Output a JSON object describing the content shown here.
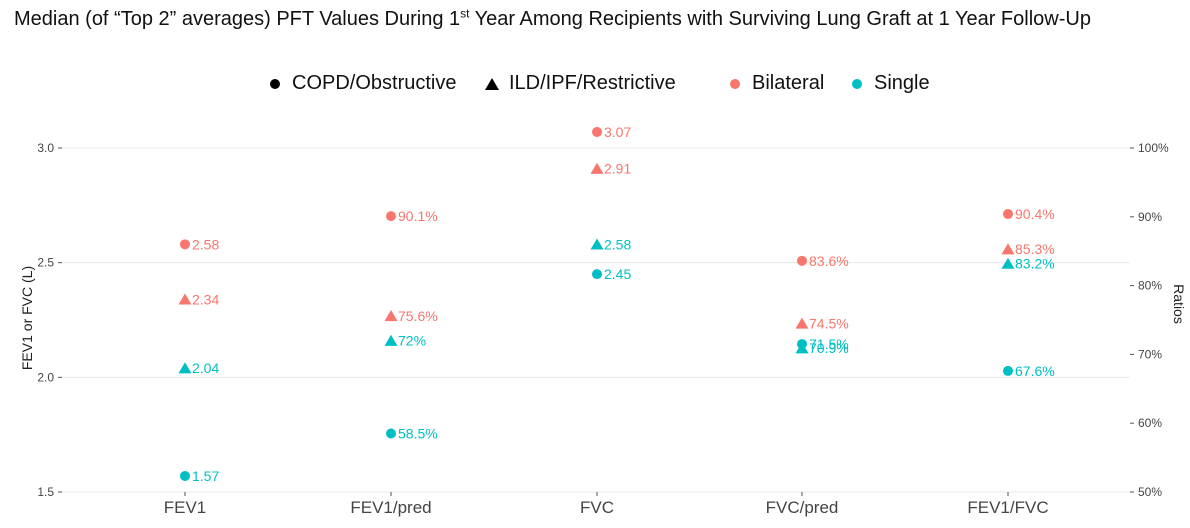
{
  "title_parts": {
    "pre": "Median (of “Top 2” averages) PFT Values During 1",
    "sup": "st",
    "post": " Year Among Recipients with Surviving Lung Graft at 1 Year Follow-Up"
  },
  "legend": {
    "shape_items": [
      {
        "label": "COPD/Obstructive",
        "shape": "circle"
      },
      {
        "label": "ILD/IPF/Restrictive",
        "shape": "triangle"
      }
    ],
    "color_items": [
      {
        "label": "Bilateral",
        "color": "#F8766D"
      },
      {
        "label": "Single",
        "color": "#00BFC4"
      }
    ]
  },
  "chart_data": {
    "type": "scatter",
    "title": "Median (of “Top 2” averages) PFT Values During 1st Year Among Recipients with Surviving Lung Graft at 1 Year Follow-Up",
    "categories": [
      "FEV1",
      "FEV1/pred",
      "FVC",
      "FVC/pred",
      "FEV1/FVC"
    ],
    "ylabel_left": "FEV1 or FVC (L)",
    "ylabel_right": "Ratios",
    "ylim_left": [
      1.5,
      3.0
    ],
    "ylim_right": [
      50,
      100
    ],
    "left_ticks": [
      "1.5",
      "2.0",
      "2.5",
      "3.0"
    ],
    "right_ticks": [
      "50%",
      "60%",
      "70%",
      "80%",
      "90%",
      "100%"
    ],
    "colors": {
      "Bilateral": "#F8766D",
      "Single": "#00BFC4"
    },
    "points": [
      {
        "category": "FEV1",
        "transplant": "Bilateral",
        "diagnosis": "COPD/Obstructive",
        "value": 2.58,
        "label": "2.58",
        "axis": "left"
      },
      {
        "category": "FEV1",
        "transplant": "Bilateral",
        "diagnosis": "ILD/IPF/Restrictive",
        "value": 2.34,
        "label": "2.34",
        "axis": "left"
      },
      {
        "category": "FEV1",
        "transplant": "Single",
        "diagnosis": "ILD/IPF/Restrictive",
        "value": 2.04,
        "label": "2.04",
        "axis": "left"
      },
      {
        "category": "FEV1",
        "transplant": "Single",
        "diagnosis": "COPD/Obstructive",
        "value": 1.57,
        "label": "1.57",
        "axis": "left"
      },
      {
        "category": "FEV1/pred",
        "transplant": "Bilateral",
        "diagnosis": "COPD/Obstructive",
        "value": 90.1,
        "label": "90.1%",
        "axis": "right"
      },
      {
        "category": "FEV1/pred",
        "transplant": "Bilateral",
        "diagnosis": "ILD/IPF/Restrictive",
        "value": 75.6,
        "label": "75.6%",
        "axis": "right"
      },
      {
        "category": "FEV1/pred",
        "transplant": "Single",
        "diagnosis": "ILD/IPF/Restrictive",
        "value": 72.0,
        "label": "72%",
        "axis": "right"
      },
      {
        "category": "FEV1/pred",
        "transplant": "Single",
        "diagnosis": "COPD/Obstructive",
        "value": 58.5,
        "label": "58.5%",
        "axis": "right"
      },
      {
        "category": "FVC",
        "transplant": "Bilateral",
        "diagnosis": "COPD/Obstructive",
        "value": 3.07,
        "label": "3.07",
        "axis": "left"
      },
      {
        "category": "FVC",
        "transplant": "Bilateral",
        "diagnosis": "ILD/IPF/Restrictive",
        "value": 2.91,
        "label": "2.91",
        "axis": "left"
      },
      {
        "category": "FVC",
        "transplant": "Single",
        "diagnosis": "ILD/IPF/Restrictive",
        "value": 2.58,
        "label": "2.58",
        "axis": "left"
      },
      {
        "category": "FVC",
        "transplant": "Single",
        "diagnosis": "COPD/Obstructive",
        "value": 2.45,
        "label": "2.45",
        "axis": "left"
      },
      {
        "category": "FVC/pred",
        "transplant": "Bilateral",
        "diagnosis": "COPD/Obstructive",
        "value": 83.6,
        "label": "83.6%",
        "axis": "right"
      },
      {
        "category": "FVC/pred",
        "transplant": "Bilateral",
        "diagnosis": "ILD/IPF/Restrictive",
        "value": 74.5,
        "label": "74.5%",
        "axis": "right"
      },
      {
        "category": "FVC/pred",
        "transplant": "Single",
        "diagnosis": "COPD/Obstructive",
        "value": 71.5,
        "label": "71.5%",
        "axis": "right"
      },
      {
        "category": "FVC/pred",
        "transplant": "Single",
        "diagnosis": "ILD/IPF/Restrictive",
        "value": 70.9,
        "label": "70.9%",
        "axis": "right"
      },
      {
        "category": "FEV1/FVC",
        "transplant": "Bilateral",
        "diagnosis": "COPD/Obstructive",
        "value": 90.4,
        "label": "90.4%",
        "axis": "right"
      },
      {
        "category": "FEV1/FVC",
        "transplant": "Bilateral",
        "diagnosis": "ILD/IPF/Restrictive",
        "value": 85.3,
        "label": "85.3%",
        "axis": "right"
      },
      {
        "category": "FEV1/FVC",
        "transplant": "Single",
        "diagnosis": "ILD/IPF/Restrictive",
        "value": 83.2,
        "label": "83.2%",
        "axis": "right"
      },
      {
        "category": "FEV1/FVC",
        "transplant": "Single",
        "diagnosis": "COPD/Obstructive",
        "value": 67.6,
        "label": "67.6%",
        "axis": "right"
      }
    ]
  }
}
